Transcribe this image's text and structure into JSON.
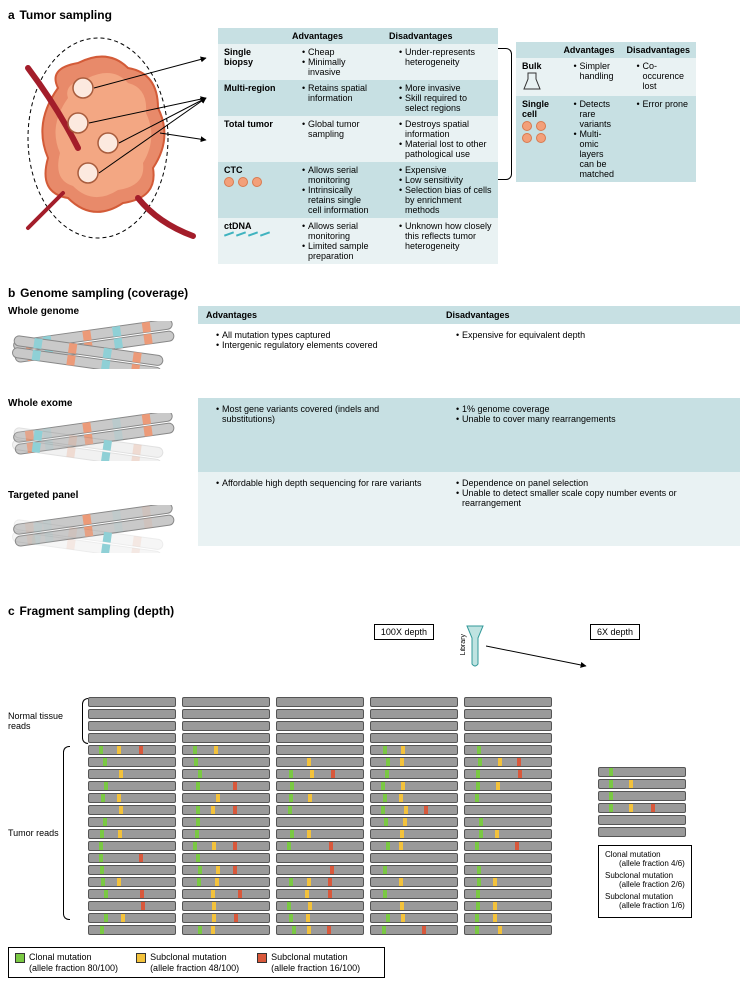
{
  "colors": {
    "header_bg": "#c7e0e3",
    "row_alt_bg": "#e9f2f3",
    "tumor_fill": "#e88a6a",
    "tumor_stroke": "#d35b38",
    "vessel": "#a31d2a",
    "chrom_body": "#c9c9c9",
    "chrom_stroke": "#888888",
    "band_orange": "#ec9a78",
    "band_teal": "#8fd0d6",
    "read_fill": "#9a9a9a",
    "read_stroke": "#555555",
    "mut_green": "#7ac943",
    "mut_yellow": "#f3c23b",
    "mut_red": "#d9583b",
    "library_fill": "#bfe3e1",
    "library_stroke": "#339999"
  },
  "a": {
    "panel_letter": "a",
    "title": "Tumor sampling",
    "col_adv": "Advantages",
    "col_dis": "Disadvantages",
    "rows": [
      {
        "name": "Single biopsy",
        "adv": [
          "Cheap",
          "Minimally invasive"
        ],
        "dis": [
          "Under-represents heterogeneity"
        ]
      },
      {
        "name": "Multi-region",
        "adv": [
          "Retains spatial information"
        ],
        "dis": [
          "More invasive",
          "Skill required to select regions"
        ]
      },
      {
        "name": "Total tumor",
        "adv": [
          "Global tumor sampling"
        ],
        "dis": [
          "Destroys spatial information",
          "Material lost to other pathological use"
        ]
      },
      {
        "name": "CTC",
        "adv": [
          "Allows serial monitoring",
          "Intrinsically retains single cell information"
        ],
        "dis": [
          "Expensive",
          "Low sensitivity",
          "Selection bias of cells by enrichment methods"
        ]
      },
      {
        "name": "ctDNA",
        "adv": [
          "Allows serial monitoring",
          "Limited sample preparation"
        ],
        "dis": [
          "Unknown how closely this reflects tumor heterogeneity"
        ]
      }
    ],
    "right_rows": [
      {
        "name": "Bulk",
        "adv": [
          "Simpler handling"
        ],
        "dis": [
          "Co-occurence lost"
        ]
      },
      {
        "name": "Single cell",
        "adv": [
          "Detects rare variants",
          "Multi-omic layers can be matched"
        ],
        "dis": [
          "Error prone"
        ]
      }
    ]
  },
  "b": {
    "panel_letter": "b",
    "title": "Genome sampling (coverage)",
    "col_adv": "Advantages",
    "col_dis": "Disadvantages",
    "rows": [
      {
        "name": "Whole genome",
        "adv": [
          "All mutation types captured",
          "Intergenic regulatory elements covered"
        ],
        "dis": [
          "Expensive for equivalent depth"
        ]
      },
      {
        "name": "Whole exome",
        "adv": [
          "Most gene variants covered (indels and substitutions)"
        ],
        "dis": [
          "1% genome coverage",
          "Unable to cover many rearrangements"
        ]
      },
      {
        "name": "Targeted panel",
        "adv": [
          "Affordable high depth sequencing for rare variants"
        ],
        "dis": [
          "Dependence on panel selection",
          "Unable to detect smaller scale copy number events or rearrangement"
        ]
      }
    ]
  },
  "c": {
    "panel_letter": "c",
    "title": "Fragment sampling (depth)",
    "library_label": "Library",
    "depth_100": "100X depth",
    "depth_6": "6X depth",
    "label_normal": "Normal tissue reads",
    "label_tumor": "Tumor reads",
    "legend_100": [
      {
        "color": "mut_green",
        "label": "Clonal mutation",
        "frac": "(allele fraction 80/100)"
      },
      {
        "color": "mut_yellow",
        "label": "Subclonal mutation",
        "frac": "(allele fraction 48/100)"
      },
      {
        "color": "mut_red",
        "label": "Subclonal mutation",
        "frac": "(allele fraction 16/100)"
      }
    ],
    "legend_6": [
      {
        "color": "mut_green",
        "label": "Clonal mutation",
        "frac": "(allele fraction 4/6)"
      },
      {
        "color": "mut_yellow",
        "label": "Subclonal mutation",
        "frac": "(allele fraction 2/6)"
      },
      {
        "color": "mut_red",
        "label": "Subclonal mutation",
        "frac": "(allele fraction 1/6)"
      }
    ],
    "grid100": {
      "columns": 5,
      "normal_rows": 4,
      "tumor_rows": 16
    },
    "grid6": {
      "rows": 6
    }
  }
}
